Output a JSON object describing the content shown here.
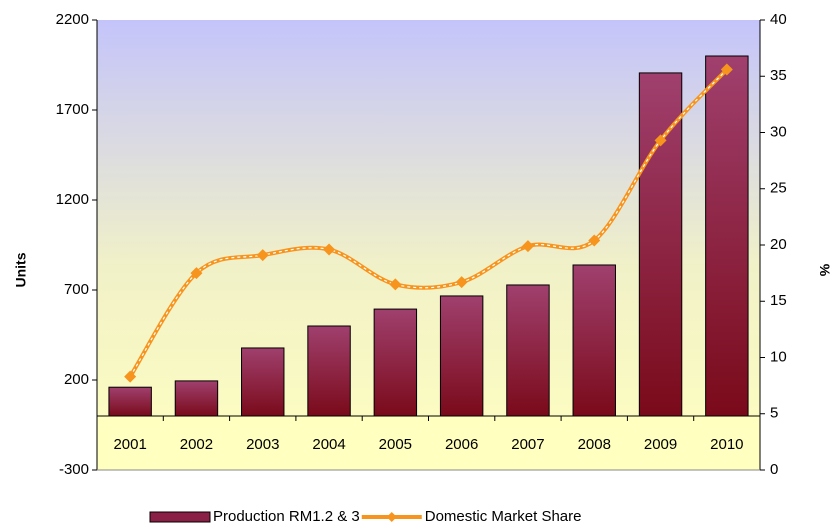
{
  "chart_data": {
    "type": "bar_line",
    "categories": [
      "2001",
      "2002",
      "2003",
      "2004",
      "2005",
      "2006",
      "2007",
      "2008",
      "2009",
      "2010"
    ],
    "series": [
      {
        "name": "Production RM1.2 & 3",
        "type": "bar",
        "color": "#8a2045",
        "values": [
          160,
          195,
          378,
          500,
          594,
          667,
          728,
          839,
          1906,
          2000
        ]
      },
      {
        "name": "Domestic Market Share",
        "type": "line",
        "axis": "y2",
        "color": "#f7941d",
        "values": [
          8.3,
          17.5,
          19.1,
          19.6,
          16.5,
          16.7,
          19.9,
          20.4,
          29.3,
          35.6
        ]
      }
    ],
    "ylabel": "Units",
    "y2label": "%",
    "ylim": [
      -300,
      2200
    ],
    "yticks": [
      -300,
      200,
      700,
      1200,
      1700,
      2200
    ],
    "y2lim": [
      0,
      40
    ],
    "y2ticks": [
      0,
      5,
      10,
      15,
      20,
      25,
      30,
      35,
      40
    ]
  }
}
